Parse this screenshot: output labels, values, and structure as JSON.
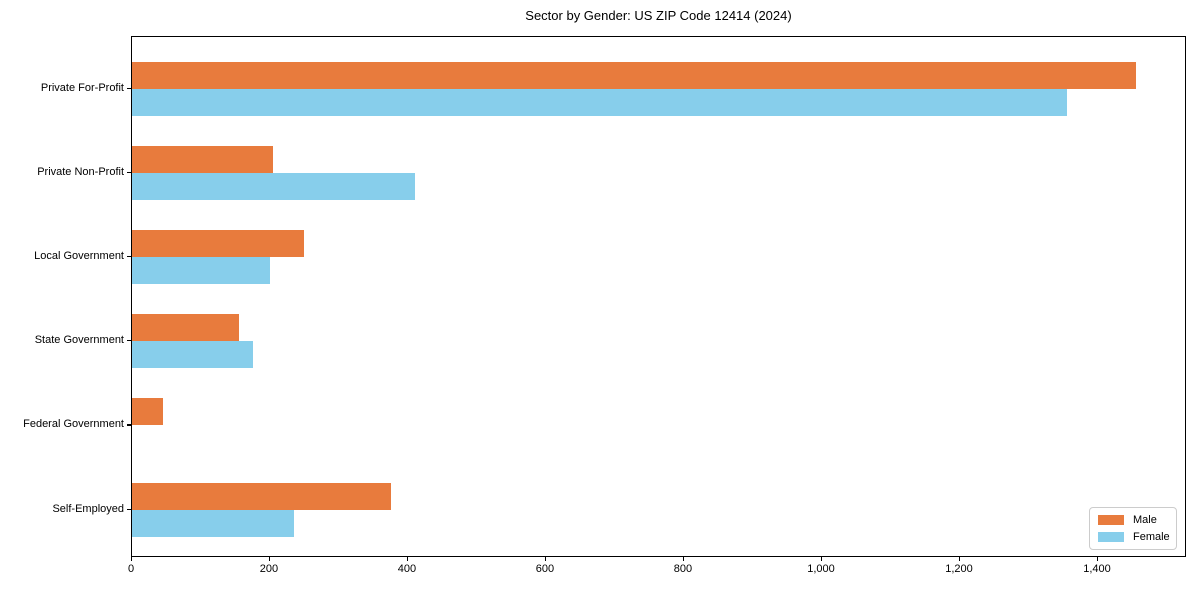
{
  "chart_data": {
    "type": "bar",
    "orientation": "horizontal",
    "title": "Sector by Gender: US ZIP Code 12414 (2024)",
    "categories": [
      "Private For-Profit",
      "Private Non-Profit",
      "Local Government",
      "State Government",
      "Federal Government",
      "Self-Employed"
    ],
    "series": [
      {
        "name": "Male",
        "color": "#E87B3D",
        "values": [
          1455,
          205,
          250,
          155,
          45,
          375
        ]
      },
      {
        "name": "Female",
        "color": "#87CEEB",
        "values": [
          1355,
          410,
          200,
          175,
          0,
          235
        ]
      }
    ],
    "xlabel": "",
    "ylabel": "",
    "xlim": [
      0,
      1529
    ],
    "xticks": [
      {
        "value": 0,
        "label": "0"
      },
      {
        "value": 200,
        "label": "200"
      },
      {
        "value": 400,
        "label": "400"
      },
      {
        "value": 600,
        "label": "600"
      },
      {
        "value": 800,
        "label": "800"
      },
      {
        "value": 1000,
        "label": "1,000"
      },
      {
        "value": 1200,
        "label": "1,200"
      },
      {
        "value": 1400,
        "label": "1,400"
      }
    ],
    "grid": false,
    "legend_position": "lower right",
    "background_color": "#ffffff",
    "axis_color": "#000000"
  }
}
